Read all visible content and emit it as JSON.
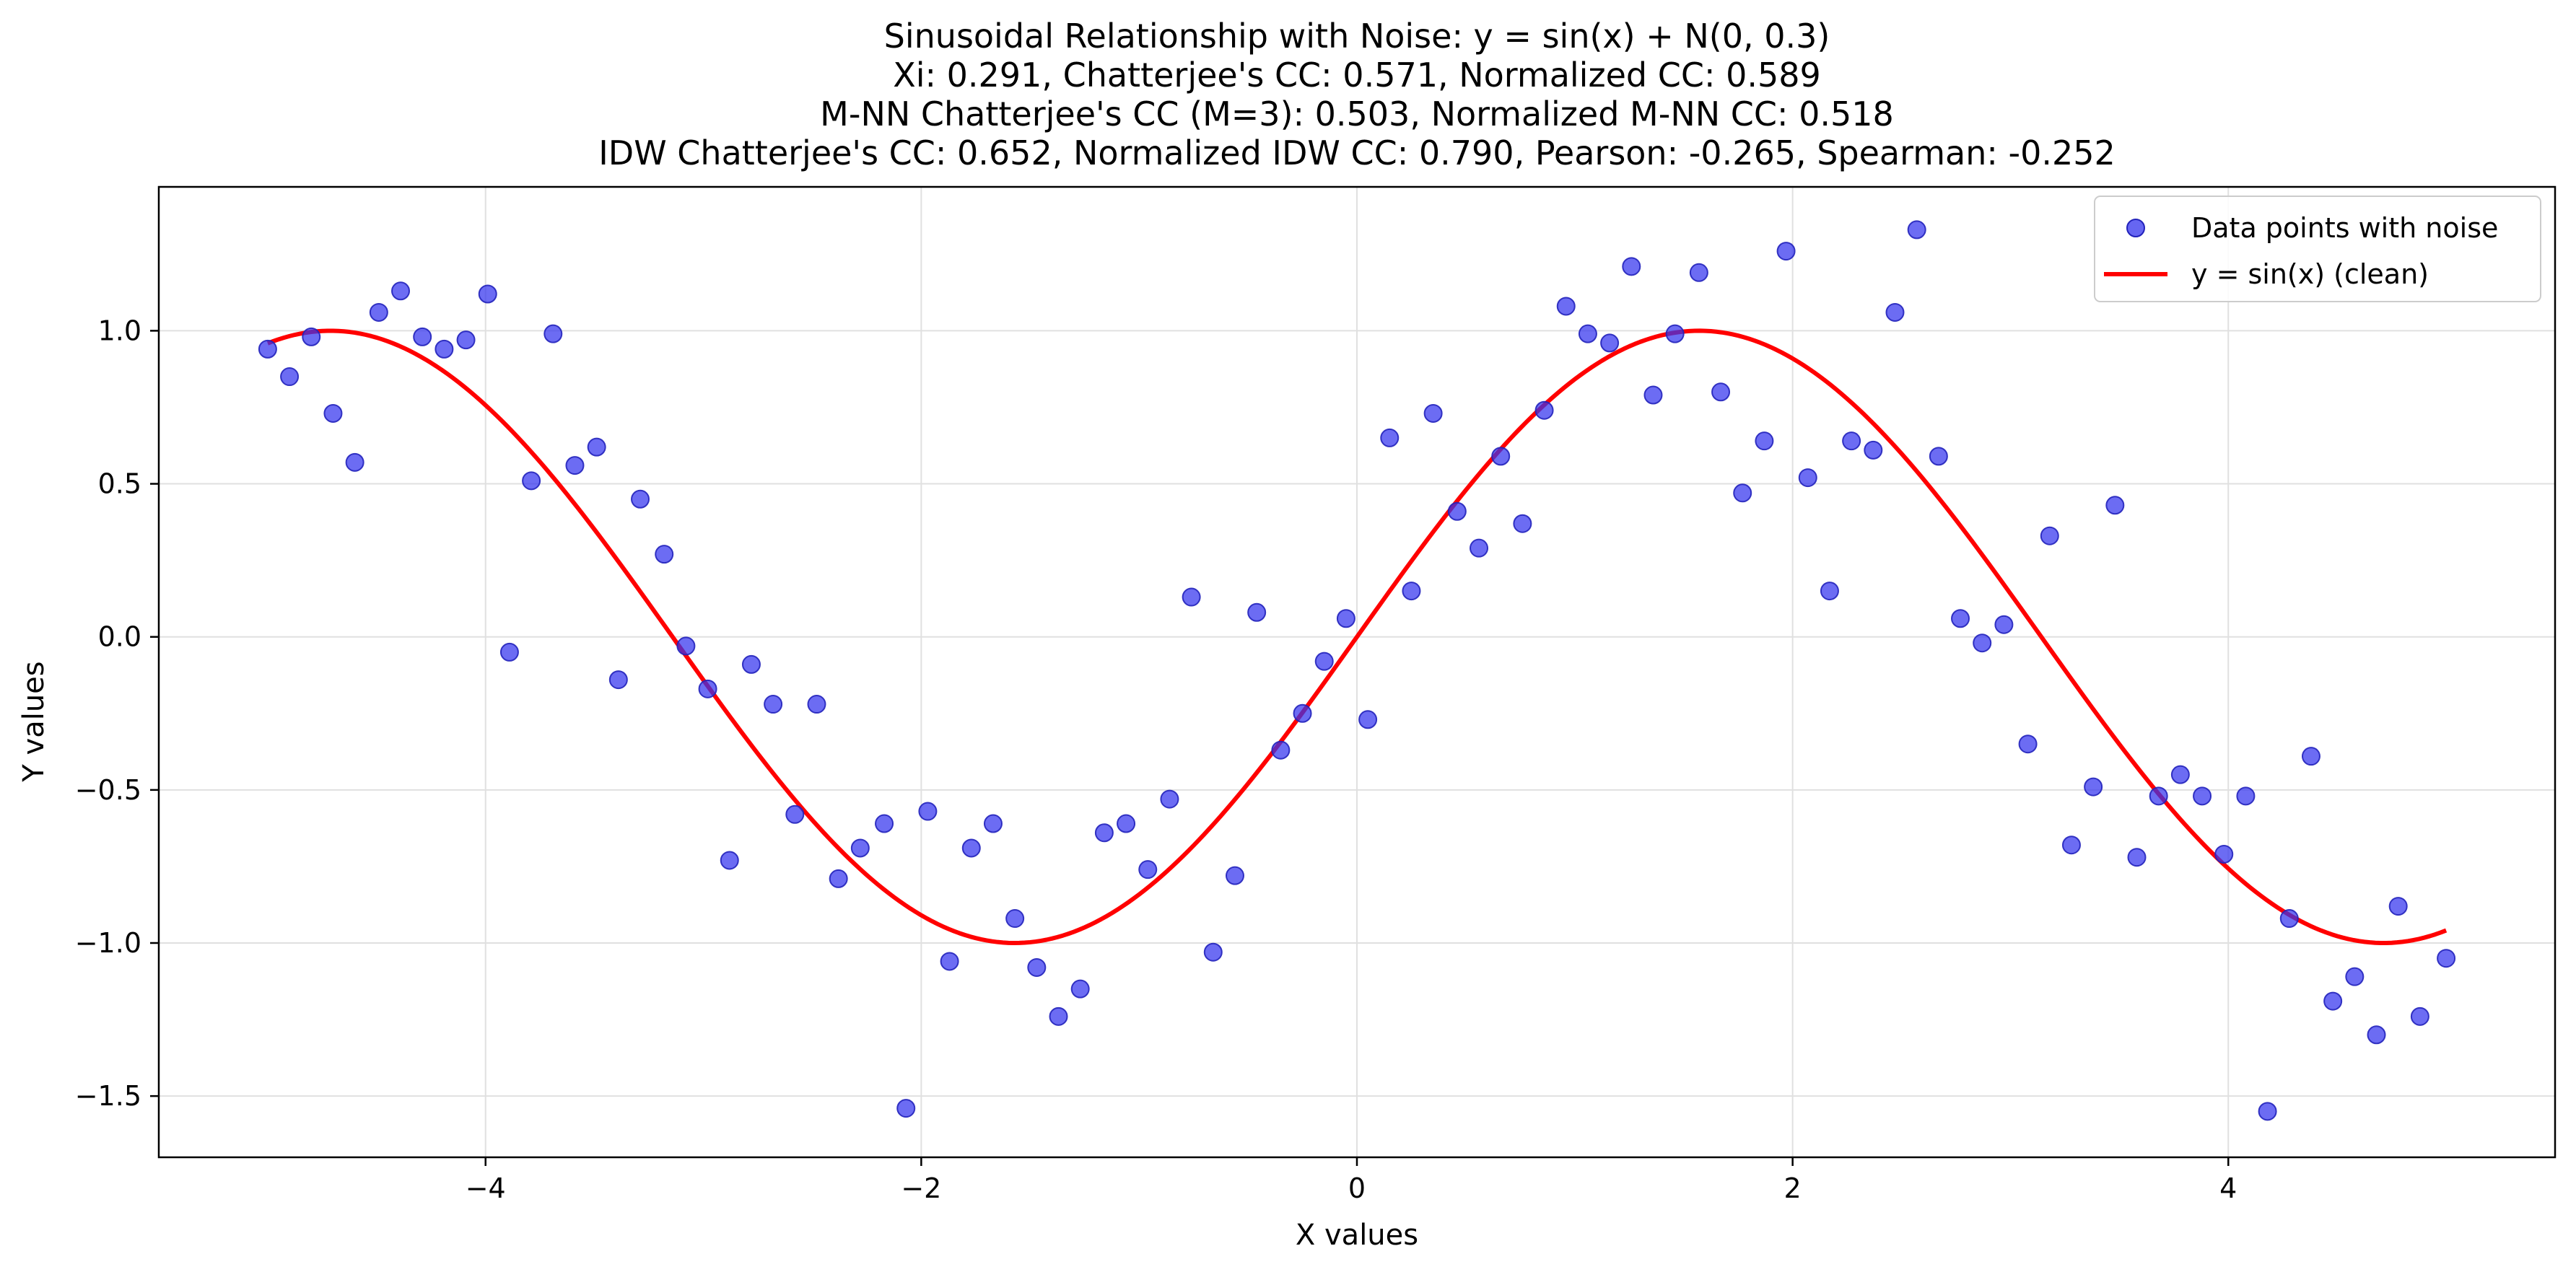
{
  "chart_data": {
    "type": "scatter",
    "title_lines": [
      "Sinusoidal Relationship with Noise: y = sin(x) + N(0, 0.3)",
      "Xi: 0.291, Chatterjee's CC: 0.571, Normalized CC: 0.589",
      "M-NN Chatterjee's CC (M=3): 0.503, Normalized M-NN CC: 0.518",
      "IDW Chatterjee's CC: 0.652, Normalized IDW CC: 0.790, Pearson: -0.265, Spearman: -0.252"
    ],
    "xlabel": "X values",
    "ylabel": "Y values",
    "xlim": [
      -5.5,
      5.5
    ],
    "ylim": [
      -1.7,
      1.47
    ],
    "xticks": [
      -4,
      -2,
      0,
      2,
      4
    ],
    "xtick_labels": [
      "−4",
      "−2",
      "0",
      "2",
      "4"
    ],
    "yticks": [
      -1.5,
      -1.0,
      -0.5,
      0.0,
      0.5,
      1.0
    ],
    "ytick_labels": [
      "−1.5",
      "−1.0",
      "−0.5",
      "0.0",
      "0.5",
      "1.0"
    ],
    "grid": true,
    "legend_position": "top-right",
    "series": [
      {
        "name": "Data points with noise",
        "kind": "scatter",
        "color": "#3333ee",
        "x": [
          -5.0,
          -4.9,
          -4.8,
          -4.7,
          -4.6,
          -4.49,
          -4.39,
          -4.29,
          -4.19,
          -4.09,
          -3.99,
          -3.89,
          -3.79,
          -3.69,
          -3.59,
          -3.49,
          -3.39,
          -3.29,
          -3.18,
          -3.08,
          -2.98,
          -2.88,
          -2.78,
          -2.68,
          -2.58,
          -2.48,
          -2.38,
          -2.28,
          -2.17,
          -2.07,
          -1.97,
          -1.87,
          -1.77,
          -1.67,
          -1.57,
          -1.47,
          -1.37,
          -1.27,
          -1.16,
          -1.06,
          -0.96,
          -0.86,
          -0.76,
          -0.66,
          -0.56,
          -0.46,
          -0.35,
          -0.25,
          -0.15,
          -0.05,
          0.05,
          0.15,
          0.25,
          0.35,
          0.46,
          0.56,
          0.66,
          0.76,
          0.86,
          0.96,
          1.06,
          1.16,
          1.26,
          1.36,
          1.46,
          1.57,
          1.67,
          1.77,
          1.87,
          1.97,
          2.07,
          2.17,
          2.27,
          2.37,
          2.47,
          2.57,
          2.67,
          2.77,
          2.87,
          2.97,
          3.08,
          3.18,
          3.28,
          3.38,
          3.48,
          3.58,
          3.68,
          3.78,
          3.88,
          3.98,
          4.08,
          4.18,
          4.28,
          4.38,
          4.48,
          4.58,
          4.68,
          4.78,
          4.88,
          5.0
        ],
        "y": [
          0.94,
          0.85,
          0.98,
          0.73,
          0.57,
          1.06,
          1.13,
          0.98,
          0.94,
          0.97,
          1.12,
          -0.05,
          0.51,
          0.99,
          0.56,
          0.62,
          -0.14,
          0.45,
          0.27,
          -0.03,
          -0.17,
          -0.73,
          -0.09,
          -0.22,
          -0.58,
          -0.22,
          -0.79,
          -0.69,
          -0.61,
          -1.54,
          -0.57,
          -1.06,
          -0.69,
          -0.61,
          -0.92,
          -1.08,
          -1.24,
          -1.15,
          -0.64,
          -0.61,
          -0.76,
          -0.53,
          0.13,
          -1.03,
          -0.78,
          0.08,
          -0.37,
          -0.25,
          -0.08,
          0.06,
          -0.27,
          0.65,
          0.15,
          0.73,
          0.41,
          0.29,
          0.59,
          0.37,
          0.74,
          1.08,
          0.99,
          0.96,
          1.21,
          0.79,
          0.99,
          1.19,
          0.8,
          0.47,
          0.64,
          1.26,
          0.52,
          0.15,
          0.64,
          0.61,
          1.06,
          1.33,
          0.59,
          0.06,
          -0.02,
          0.04,
          -0.35,
          0.33,
          -0.68,
          -0.49,
          0.43,
          -0.72,
          -0.52,
          -0.45,
          -0.52,
          -0.71,
          -0.52,
          -1.55,
          -0.92,
          -0.39,
          -1.19,
          -1.11,
          -1.3,
          -0.88,
          -1.24,
          -1.05
        ]
      },
      {
        "name": "y = sin(x) (clean)",
        "kind": "line",
        "color": "#ff0000",
        "function": "sin",
        "x_range": [
          -5.0,
          5.0
        ]
      }
    ]
  }
}
